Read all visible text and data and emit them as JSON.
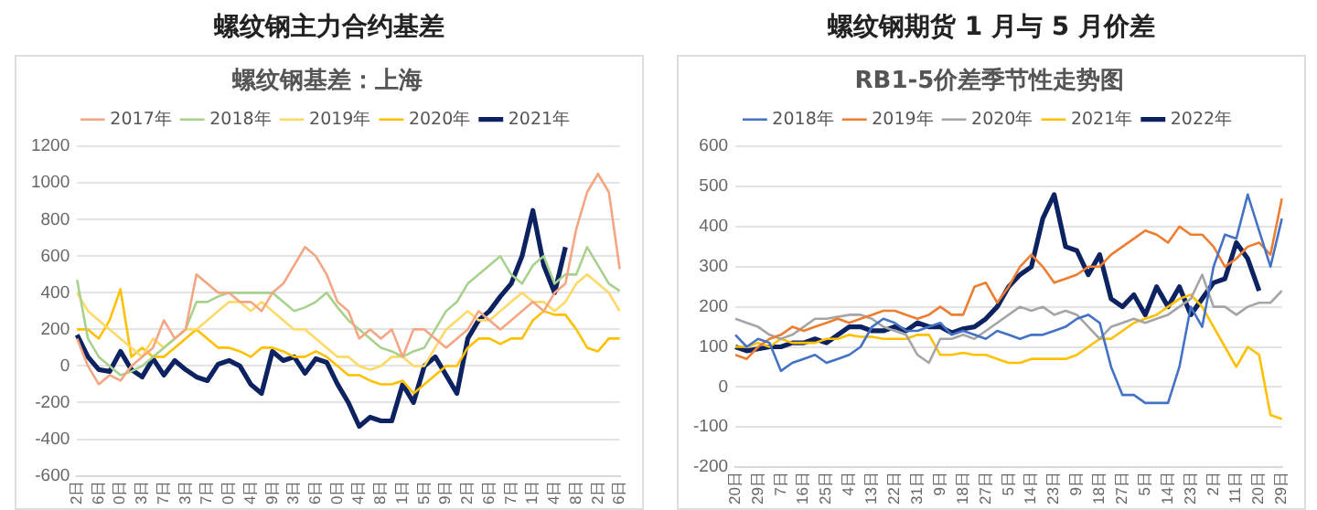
{
  "chart_data": [
    {
      "type": "line",
      "title": "螺纹钢主力合约基差",
      "subtitle": "螺纹钢基差：上海",
      "categories": [
        "2日",
        null,
        "6日",
        null,
        "0日",
        null,
        "3日",
        null,
        "7日",
        null,
        "3日",
        null,
        "7日",
        null,
        "0日",
        null,
        "4日",
        null,
        "9日",
        null,
        "3日",
        null,
        "6日",
        null,
        "0日",
        null,
        "4日",
        null,
        "8日",
        null,
        "1日",
        null,
        "5日",
        null,
        "9日",
        null,
        "2日",
        null,
        "6日",
        null,
        "7日",
        null,
        "1日",
        null,
        "4日",
        null,
        "8日",
        null,
        "2日",
        null,
        "6日"
      ],
      "series": [
        {
          "name": "2017年",
          "color": "#f4a582",
          "values": [
            150,
            0,
            -100,
            -50,
            -80,
            0,
            50,
            100,
            250,
            150,
            200,
            500,
            450,
            400,
            400,
            350,
            350,
            300,
            400,
            450,
            550,
            650,
            600,
            500,
            350,
            300,
            150,
            200,
            150,
            200,
            50,
            200,
            200,
            150,
            100,
            150,
            200,
            300,
            250,
            200,
            250,
            300,
            350,
            300,
            400,
            450,
            750,
            950,
            1050,
            950,
            530
          ]
        },
        {
          "name": "2018年",
          "color": "#a9d18e",
          "values": [
            470,
            150,
            50,
            0,
            -50,
            -30,
            0,
            50,
            100,
            150,
            200,
            350,
            350,
            380,
            400,
            400,
            400,
            400,
            400,
            350,
            300,
            320,
            350,
            400,
            320,
            250,
            200,
            150,
            100,
            80,
            50,
            80,
            100,
            200,
            300,
            350,
            450,
            500,
            550,
            600,
            500,
            450,
            550,
            600,
            450,
            500,
            500,
            650,
            550,
            450,
            410
          ]
        },
        {
          "name": "2019年",
          "color": "#ffd966",
          "values": [
            400,
            300,
            250,
            200,
            150,
            100,
            50,
            150,
            100,
            150,
            200,
            200,
            250,
            300,
            350,
            350,
            300,
            350,
            300,
            250,
            200,
            200,
            150,
            100,
            50,
            50,
            0,
            -20,
            0,
            50,
            50,
            0,
            0,
            100,
            200,
            250,
            300,
            250,
            250,
            300,
            350,
            400,
            350,
            350,
            300,
            350,
            450,
            500,
            450,
            400,
            300
          ]
        },
        {
          "name": "2020年",
          "color": "#ffc000",
          "values": [
            200,
            200,
            150,
            250,
            420,
            50,
            100,
            50,
            50,
            100,
            150,
            200,
            150,
            100,
            100,
            80,
            50,
            100,
            100,
            80,
            50,
            50,
            80,
            50,
            0,
            -50,
            -50,
            -80,
            -100,
            -100,
            -80,
            -150,
            -100,
            -50,
            0,
            0,
            100,
            150,
            150,
            120,
            150,
            150,
            250,
            300,
            280,
            280,
            200,
            100,
            80,
            150,
            150
          ]
        },
        {
          "name": "2021年",
          "color": "#0d2260",
          "values": [
            170,
            50,
            -20,
            -30,
            80,
            -20,
            -60,
            40,
            -50,
            30,
            -20,
            -60,
            -80,
            10,
            30,
            0,
            -100,
            -150,
            80,
            30,
            50,
            -40,
            40,
            20,
            -100,
            -200,
            -330,
            -280,
            -300,
            -300,
            -100,
            -200,
            0,
            50,
            -50,
            -150,
            150,
            250,
            300,
            380,
            450,
            600,
            850,
            550,
            400,
            650,
            null,
            null,
            null,
            null,
            null
          ]
        }
      ],
      "ylim": [
        -600,
        1200
      ],
      "yticks": [
        -600,
        -400,
        -200,
        0,
        200,
        400,
        600,
        800,
        1000,
        1200
      ],
      "grid": "y",
      "legend": "top",
      "marker": "none",
      "line_style": "solid"
    },
    {
      "type": "line",
      "title": "螺纹钢期货 1 月与 5 月价差",
      "subtitle": "RB1-5价差季节性走势图",
      "categories": [
        "20日",
        null,
        "29日",
        null,
        "7日",
        null,
        "16日",
        null,
        "25日",
        null,
        "4日",
        null,
        "13日",
        null,
        "22日",
        null,
        "31日",
        null,
        "9日",
        null,
        "18日",
        null,
        "27日",
        null,
        "5日",
        null,
        "14日",
        null,
        "23日",
        null,
        "9日",
        null,
        "18日",
        null,
        "27日",
        null,
        "5日",
        null,
        "14日",
        null,
        "23日",
        null,
        "2日",
        null,
        "11日",
        null,
        "20日",
        null,
        "29日"
      ],
      "series": [
        {
          "name": "2018年",
          "color": "#4472c4",
          "values": [
            130,
            100,
            120,
            110,
            40,
            60,
            70,
            80,
            60,
            70,
            80,
            100,
            150,
            170,
            160,
            140,
            140,
            150,
            160,
            130,
            140,
            130,
            120,
            140,
            130,
            120,
            130,
            130,
            140,
            150,
            170,
            180,
            160,
            50,
            -20,
            -20,
            -40,
            -40,
            -40,
            50,
            200,
            150,
            300,
            380,
            370,
            480,
            390,
            300,
            420
          ]
        },
        {
          "name": "2019年",
          "color": "#ed7d31",
          "values": [
            80,
            70,
            100,
            120,
            130,
            150,
            140,
            150,
            160,
            170,
            160,
            170,
            180,
            190,
            190,
            180,
            170,
            180,
            200,
            180,
            180,
            250,
            260,
            210,
            250,
            300,
            330,
            300,
            260,
            270,
            280,
            300,
            300,
            330,
            350,
            370,
            390,
            380,
            360,
            400,
            380,
            380,
            350,
            300,
            320,
            350,
            360,
            330,
            470
          ]
        },
        {
          "name": "2020年",
          "color": "#a5a5a5",
          "values": [
            170,
            160,
            150,
            130,
            120,
            130,
            150,
            170,
            170,
            175,
            180,
            180,
            170,
            150,
            140,
            130,
            80,
            60,
            120,
            120,
            130,
            120,
            140,
            160,
            180,
            200,
            190,
            200,
            180,
            190,
            180,
            150,
            120,
            150,
            160,
            170,
            160,
            170,
            180,
            200,
            220,
            280,
            200,
            200,
            180,
            200,
            210,
            210,
            240
          ]
        },
        {
          "name": "2021年",
          "color": "#ffc000",
          "values": [
            100,
            100,
            110,
            100,
            120,
            110,
            110,
            110,
            120,
            120,
            130,
            125,
            125,
            120,
            120,
            120,
            130,
            130,
            80,
            80,
            85,
            80,
            80,
            70,
            60,
            60,
            70,
            70,
            70,
            70,
            80,
            100,
            120,
            120,
            140,
            160,
            170,
            180,
            200,
            220,
            230,
            200,
            150,
            100,
            50,
            100,
            80,
            -70,
            -80
          ]
        },
        {
          "name": "2022年",
          "color": "#0d2260",
          "values": [
            100,
            90,
            95,
            100,
            100,
            110,
            110,
            120,
            110,
            130,
            150,
            150,
            140,
            140,
            150,
            140,
            160,
            150,
            150,
            135,
            145,
            150,
            170,
            200,
            250,
            280,
            300,
            420,
            480,
            350,
            340,
            280,
            330,
            220,
            200,
            230,
            180,
            250,
            200,
            250,
            180,
            220,
            260,
            270,
            360,
            320,
            240,
            null,
            null
          ]
        }
      ],
      "ylim": [
        -200,
        600
      ],
      "yticks": [
        -200,
        -100,
        0,
        100,
        200,
        300,
        400,
        500,
        600
      ],
      "grid": "y",
      "legend": "top",
      "marker": "none",
      "line_style": "solid"
    }
  ]
}
